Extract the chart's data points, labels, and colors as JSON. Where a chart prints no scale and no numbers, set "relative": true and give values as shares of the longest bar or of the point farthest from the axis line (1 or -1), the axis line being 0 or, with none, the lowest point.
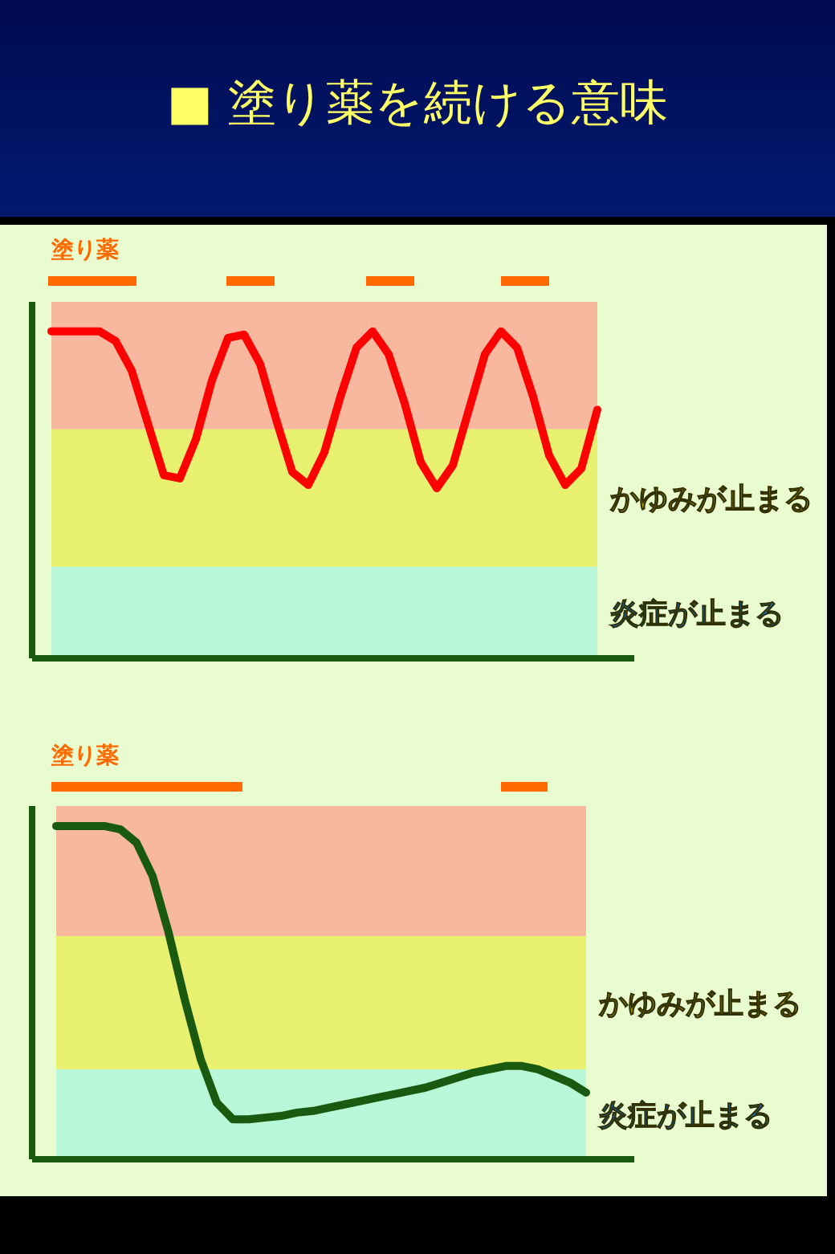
{
  "chart_data": [
    {
      "type": "line",
      "title": "■ 塗り薬を続ける意味",
      "relative": true,
      "marker": "none",
      "line_style": "solid",
      "annotations": [
        "塗り薬"
      ],
      "bands": [
        {
          "axis": "y",
          "from": 0.7,
          "to": 1.09,
          "color": "#f8b8a0"
        },
        {
          "axis": "y",
          "from": 0.28,
          "to": 0.7,
          "label": "かゆみが止まる",
          "color": "#e8f070"
        },
        {
          "axis": "y",
          "from": 0,
          "to": 0.28,
          "label": "炎症が止まる",
          "color": "#b8f8d8"
        }
      ],
      "categories": [
        null,
        null,
        null,
        null,
        null,
        null,
        null,
        null,
        null,
        null,
        null,
        null,
        null,
        null,
        null,
        null,
        null,
        null,
        null,
        null,
        null,
        null,
        null,
        null,
        null,
        null,
        null,
        null,
        null,
        null,
        null,
        null,
        null,
        null,
        null
      ],
      "series": [
        {
          "color": "#ff0000",
          "values": [
            1,
            1,
            1,
            1,
            0.97,
            0.88,
            0.72,
            0.56,
            0.55,
            0.67,
            0.85,
            0.98,
            0.99,
            0.9,
            0.73,
            0.57,
            0.53,
            0.63,
            0.8,
            0.95,
            1,
            0.93,
            0.78,
            0.6,
            0.52,
            0.59,
            0.76,
            0.93,
            1,
            0.95,
            0.8,
            0.62,
            0.53,
            0.58,
            0.76
          ]
        }
      ]
    },
    {
      "type": "line",
      "relative": true,
      "marker": "none",
      "line_style": "solid",
      "annotations": [
        "塗り薬"
      ],
      "bands": [
        {
          "axis": "y",
          "from": 0.67,
          "to": 1.06,
          "color": "#f8b8a0"
        },
        {
          "axis": "y",
          "from": 0.27,
          "to": 0.67,
          "label": "かゆみが止まる",
          "color": "#e8f070"
        },
        {
          "axis": "y",
          "from": 0,
          "to": 0.27,
          "label": "炎症が止まる",
          "color": "#b8f8d8"
        }
      ],
      "categories": [
        null,
        null,
        null,
        null,
        null,
        null,
        null,
        null,
        null,
        null,
        null,
        null,
        null,
        null,
        null,
        null,
        null,
        null,
        null,
        null,
        null,
        null,
        null,
        null,
        null,
        null,
        null,
        null,
        null,
        null,
        null,
        null,
        null,
        null
      ],
      "series": [
        {
          "color": "#1a5a10",
          "values": [
            1,
            1,
            1,
            1,
            0.99,
            0.95,
            0.85,
            0.68,
            0.48,
            0.3,
            0.17,
            0.12,
            0.12,
            0.125,
            0.13,
            0.14,
            0.145,
            0.155,
            0.165,
            0.175,
            0.185,
            0.195,
            0.205,
            0.215,
            0.23,
            0.245,
            0.26,
            0.27,
            0.28,
            0.28,
            0.27,
            0.25,
            0.23,
            0.2
          ]
        }
      ]
    }
  ]
}
